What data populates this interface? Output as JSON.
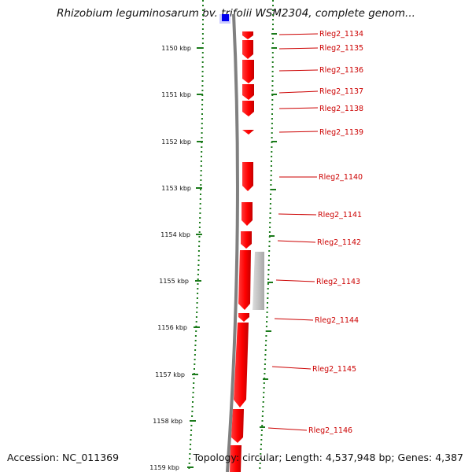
{
  "header": {
    "title": "Rhizobium leguminosarum bv. trifolii WSM2304, complete genom..."
  },
  "footer": {
    "accession": "Accession: NC_011369",
    "summary": "Topology: circular; Length: 4,537,948 bp; Genes: 4,387"
  },
  "scale": {
    "unit": "kbp",
    "ticks": [
      "1150 kbp",
      "1151 kbp",
      "1152 kbp",
      "1153 kbp",
      "1154 kbp",
      "1155 kbp",
      "1156 kbp",
      "1157 kbp",
      "1158 kbp",
      "1159 kbp"
    ]
  },
  "genes": [
    {
      "label": "Rleg2_1134",
      "color": "#ff0000"
    },
    {
      "label": "Rleg2_1135",
      "color": "#ff0000"
    },
    {
      "label": "Rleg2_1136",
      "color": "#ff0000"
    },
    {
      "label": "Rleg2_1137",
      "color": "#ff0000"
    },
    {
      "label": "Rleg2_1138",
      "color": "#ff0000"
    },
    {
      "label": "Rleg2_1139",
      "color": "#ff0000"
    },
    {
      "label": "Rleg2_1140",
      "color": "#ff0000"
    },
    {
      "label": "Rleg2_1141",
      "color": "#ff0000"
    },
    {
      "label": "Rleg2_1142",
      "color": "#ff0000"
    },
    {
      "label": "Rleg2_1143",
      "color": "#ff0000"
    },
    {
      "label": "Rleg2_1144",
      "color": "#ff0000"
    },
    {
      "label": "Rleg2_1145",
      "color": "#ff0000"
    },
    {
      "label": "Rleg2_1146",
      "color": "#ff0000"
    }
  ],
  "colors": {
    "gene_fill": "#ff0000",
    "label_text": "#cc0000",
    "tick_green": "#1a7a1a",
    "backbone": "#808080",
    "other_feature": "#c8c8c8",
    "top_feature": "#0000ee"
  }
}
